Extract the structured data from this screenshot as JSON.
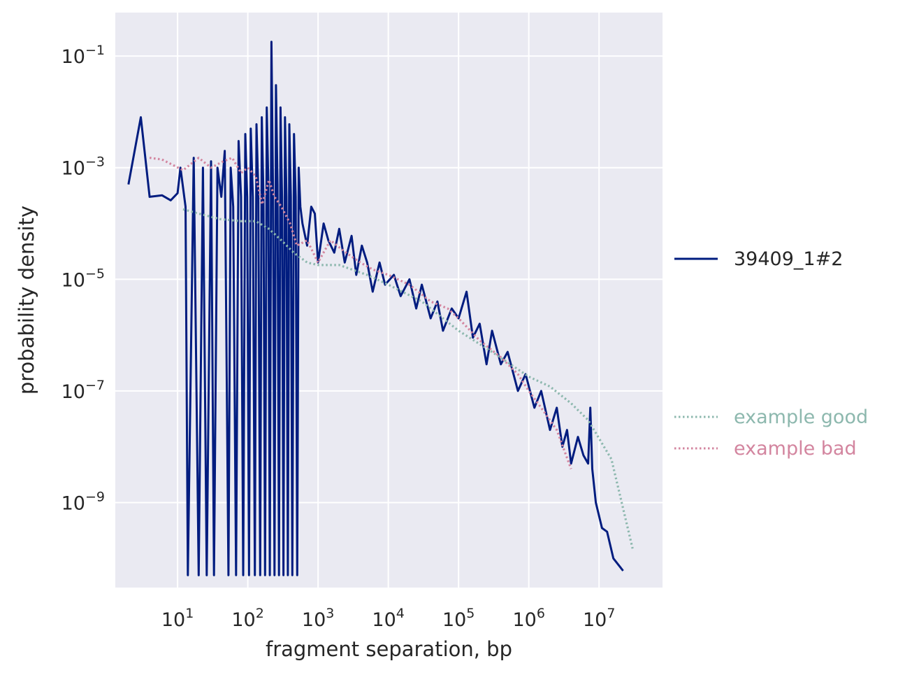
{
  "chart_data": {
    "type": "line",
    "xlabel": "fragment separation, bp",
    "ylabel": "probability density",
    "xscale": "log",
    "yscale": "log",
    "xlim": [
      1.3,
      80000000.0
    ],
    "ylim": [
      3e-11,
      0.6
    ],
    "grid": true,
    "x_ticks": [
      {
        "base": "10",
        "exp": "1",
        "value": 10
      },
      {
        "base": "10",
        "exp": "2",
        "value": 100
      },
      {
        "base": "10",
        "exp": "3",
        "value": 1000
      },
      {
        "base": "10",
        "exp": "4",
        "value": 10000
      },
      {
        "base": "10",
        "exp": "5",
        "value": 100000
      },
      {
        "base": "10",
        "exp": "6",
        "value": 1000000
      },
      {
        "base": "10",
        "exp": "7",
        "value": 10000000
      }
    ],
    "y_ticks": [
      {
        "base": "10",
        "exp": "−1",
        "value": 0.1
      },
      {
        "base": "10",
        "exp": "−3",
        "value": 0.001
      },
      {
        "base": "10",
        "exp": "−5",
        "value": 1e-05
      },
      {
        "base": "10",
        "exp": "−7",
        "value": 1e-07
      },
      {
        "base": "10",
        "exp": "−9",
        "value": 1e-09
      }
    ],
    "series": [
      {
        "name": "39409_1#2",
        "style": "solid",
        "color": "#001c7f",
        "points": [
          [
            2,
            0.0005
          ],
          [
            3,
            0.008
          ],
          [
            4,
            0.0003
          ],
          [
            6,
            0.00032
          ],
          [
            8,
            0.00026
          ],
          [
            10,
            0.00035
          ],
          [
            11,
            0.001
          ],
          [
            13,
            0.0002
          ],
          [
            14,
            5e-11
          ],
          [
            17,
            0.0015
          ],
          [
            20,
            5e-11
          ],
          [
            23,
            0.001
          ],
          [
            26,
            5e-11
          ],
          [
            30,
            0.0013
          ],
          [
            33,
            5e-11
          ],
          [
            37,
            0.001
          ],
          [
            42,
            0.0003
          ],
          [
            47,
            0.002
          ],
          [
            53,
            5e-11
          ],
          [
            57,
            0.001
          ],
          [
            62,
            0.0002
          ],
          [
            68,
            5e-11
          ],
          [
            74,
            0.003
          ],
          [
            80,
            0.0003
          ],
          [
            86,
            5e-11
          ],
          [
            92,
            0.004
          ],
          [
            98,
            0.0003
          ],
          [
            104,
            5e-11
          ],
          [
            110,
            0.005
          ],
          [
            118,
            0.0003
          ],
          [
            126,
            5e-11
          ],
          [
            133,
            0.006
          ],
          [
            141,
            0.0004
          ],
          [
            150,
            5e-11
          ],
          [
            158,
            0.008
          ],
          [
            167,
            0.0003
          ],
          [
            176,
            5e-11
          ],
          [
            186,
            0.012
          ],
          [
            196,
            0.0005
          ],
          [
            206,
            5e-11
          ],
          [
            217,
            0.18
          ],
          [
            228,
            0.0005
          ],
          [
            240,
            5e-11
          ],
          [
            252,
            0.03
          ],
          [
            265,
            0.0005
          ],
          [
            278,
            5e-11
          ],
          [
            292,
            0.012
          ],
          [
            307,
            0.0003
          ],
          [
            322,
            5e-11
          ],
          [
            338,
            0.008
          ],
          [
            355,
            0.0003
          ],
          [
            372,
            5e-11
          ],
          [
            390,
            0.006
          ],
          [
            410,
            0.0003
          ],
          [
            430,
            5e-11
          ],
          [
            455,
            0.004
          ],
          [
            480,
            0.0003
          ],
          [
            505,
            5e-11
          ],
          [
            530,
            0.001
          ],
          [
            560,
            0.0002
          ],
          [
            600,
            0.0001
          ],
          [
            700,
            4e-05
          ],
          [
            800,
            0.0002
          ],
          [
            900,
            0.00015
          ],
          [
            1000,
            2e-05
          ],
          [
            1200,
            0.0001
          ],
          [
            1400,
            5e-05
          ],
          [
            1700,
            3e-05
          ],
          [
            2000,
            8e-05
          ],
          [
            2400,
            2e-05
          ],
          [
            3000,
            6e-05
          ],
          [
            3500,
            1.2e-05
          ],
          [
            4200,
            4e-05
          ],
          [
            5000,
            2e-05
          ],
          [
            6000,
            6e-06
          ],
          [
            7500,
            2e-05
          ],
          [
            9000,
            8e-06
          ],
          [
            12000,
            1.2e-05
          ],
          [
            15000,
            5e-06
          ],
          [
            20000,
            1e-05
          ],
          [
            25000,
            3e-06
          ],
          [
            30000,
            8e-06
          ],
          [
            40000,
            2e-06
          ],
          [
            50000,
            4e-06
          ],
          [
            60000,
            1.2e-06
          ],
          [
            80000,
            3e-06
          ],
          [
            100000,
            2e-06
          ],
          [
            130000,
            6e-06
          ],
          [
            160000,
            9e-07
          ],
          [
            200000,
            1.6e-06
          ],
          [
            250000,
            3e-07
          ],
          [
            300000,
            1.2e-06
          ],
          [
            400000,
            3e-07
          ],
          [
            500000,
            5e-07
          ],
          [
            700000,
            1e-07
          ],
          [
            900000,
            2e-07
          ],
          [
            1200000,
            5e-08
          ],
          [
            1500000,
            1e-07
          ],
          [
            2000000,
            2e-08
          ],
          [
            2500000,
            5e-08
          ],
          [
            3000000,
            1e-08
          ],
          [
            3500000,
            2e-08
          ],
          [
            4000000,
            5e-09
          ],
          [
            5000000,
            1.5e-08
          ],
          [
            6000000,
            7e-09
          ],
          [
            7000000,
            5e-09
          ],
          [
            7500000,
            5e-08
          ],
          [
            8000000,
            4e-09
          ],
          [
            9000000,
            1e-09
          ],
          [
            11000000,
            3.5e-10
          ],
          [
            13000000,
            3e-10
          ],
          [
            16000000,
            1e-10
          ],
          [
            22000000,
            6e-11
          ]
        ]
      },
      {
        "name": "example good",
        "style": "dotted",
        "color": "#8db8ae",
        "points": [
          [
            12,
            0.00018
          ],
          [
            20,
            0.00015
          ],
          [
            40,
            0.00012
          ],
          [
            80,
            0.00011
          ],
          [
            130,
            0.00011
          ],
          [
            200,
            8e-05
          ],
          [
            300,
            5e-05
          ],
          [
            450,
            3e-05
          ],
          [
            700,
            2e-05
          ],
          [
            1000,
            1.8e-05
          ],
          [
            2000,
            1.8e-05
          ],
          [
            5000,
            1.2e-05
          ],
          [
            10000,
            8e-06
          ],
          [
            30000,
            4e-06
          ],
          [
            100000,
            1.2e-06
          ],
          [
            300000,
            5e-07
          ],
          [
            1000000,
            1.8e-07
          ],
          [
            2000000,
            1.2e-07
          ],
          [
            4000000,
            6e-08
          ],
          [
            7000000,
            3e-08
          ],
          [
            15000000,
            6e-09
          ],
          [
            30000000,
            1.5e-10
          ]
        ]
      },
      {
        "name": "example bad",
        "style": "dotted",
        "color": "#d3859f",
        "points": [
          [
            4,
            0.0015
          ],
          [
            6,
            0.0014
          ],
          [
            12,
            0.0009
          ],
          [
            20,
            0.0015
          ],
          [
            30,
            0.001
          ],
          [
            45,
            0.0013
          ],
          [
            60,
            0.0015
          ],
          [
            80,
            0.0008
          ],
          [
            100,
            0.001
          ],
          [
            130,
            0.0007
          ],
          [
            160,
            0.00022
          ],
          [
            200,
            0.0006
          ],
          [
            240,
            0.0003
          ],
          [
            300,
            0.0002
          ],
          [
            400,
            0.0001
          ],
          [
            500,
            4e-05
          ],
          [
            700,
            5e-05
          ],
          [
            1000,
            2e-05
          ],
          [
            1500,
            5e-05
          ],
          [
            2500,
            3e-05
          ],
          [
            4000,
            2e-05
          ],
          [
            6000,
            1.5e-05
          ],
          [
            10000,
            1.2e-05
          ],
          [
            20000,
            8e-06
          ],
          [
            40000,
            4e-06
          ],
          [
            70000,
            3e-06
          ],
          [
            100000,
            2e-06
          ],
          [
            200000,
            8e-07
          ],
          [
            400000,
            4e-07
          ],
          [
            700000,
            2e-07
          ],
          [
            1000000,
            1e-07
          ],
          [
            1500000,
            5e-08
          ],
          [
            2500000,
            2e-08
          ],
          [
            4000000,
            4e-09
          ]
        ]
      }
    ],
    "legend": [
      {
        "label": "39409_1#2",
        "color": "#001c7f",
        "style": "solid",
        "text_color": "#262626"
      },
      {
        "label": "example good",
        "color": "#8db8ae",
        "style": "dotted",
        "text_color": "#8db8ae"
      },
      {
        "label": "example bad",
        "color": "#d3859f",
        "style": "dotted",
        "text_color": "#d3859f"
      }
    ],
    "legend_position": "right, outside plot area",
    "colors": {
      "plot_background": "#eaeaf2",
      "grid": "#ffffff",
      "text": "#262626"
    }
  }
}
